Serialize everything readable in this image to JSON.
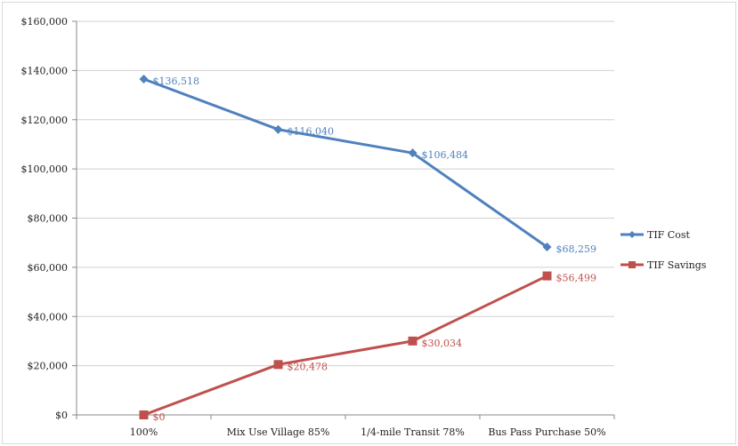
{
  "chart_data": {
    "type": "line",
    "title": "",
    "xlabel": "",
    "ylabel": "",
    "categories": [
      "100%",
      "Mix Use Village 85%",
      "1/4-mile Transit 78%",
      "Bus Pass Purchase 50%"
    ],
    "ylim": [
      0,
      160000
    ],
    "yticks": [
      0,
      20000,
      40000,
      60000,
      80000,
      100000,
      120000,
      140000,
      160000
    ],
    "ytick_labels": [
      "$0",
      "$20,000",
      "$40,000",
      "$60,000",
      "$80,000",
      "$100,000",
      "$120,000",
      "$140,000",
      "$160,000"
    ],
    "grid": true,
    "legend_position": "right",
    "series": [
      {
        "name": "TIF Cost",
        "color": "#4f81bd",
        "marker": "diamond",
        "values": [
          136518,
          116040,
          106484,
          68259
        ],
        "labels": [
          "$136,518",
          "$116,040",
          "$106,484",
          "$68,259"
        ]
      },
      {
        "name": "TIF Savings",
        "color": "#c0504d",
        "marker": "square",
        "values": [
          0,
          20478,
          30034,
          56499
        ],
        "labels": [
          "$0",
          "$20,478",
          "$30,034",
          "$56,499"
        ]
      }
    ]
  }
}
